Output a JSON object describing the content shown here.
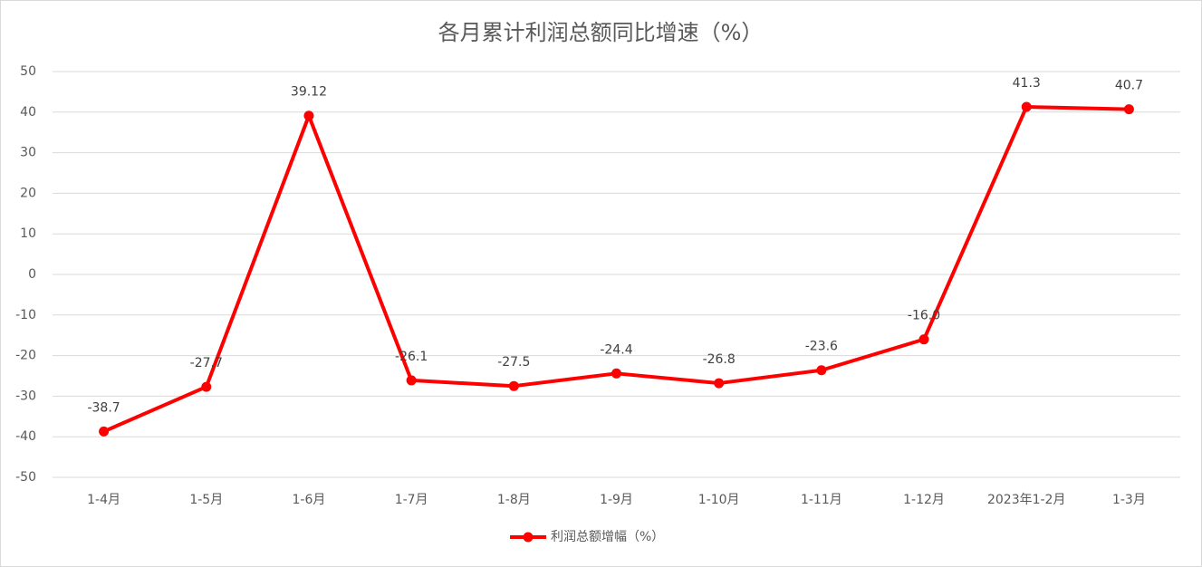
{
  "chart_data": {
    "type": "line",
    "title": "各月累计利润总额同比增速（%）",
    "categories": [
      "1-4月",
      "1-5月",
      "1-6月",
      "1-7月",
      "1-8月",
      "1-9月",
      "1-10月",
      "1-11月",
      "1-12月",
      "2023年1-2月",
      "1-3月"
    ],
    "series": [
      {
        "name": "利润总额增幅（%）",
        "color": "#ff0000",
        "values": [
          -38.7,
          -27.7,
          39.12,
          -26.1,
          -27.5,
          -24.4,
          -26.8,
          -23.6,
          -16.0,
          41.3,
          40.7
        ],
        "value_labels": [
          "-38.7",
          "-27.7",
          "39.12",
          "-26.1",
          "-27.5",
          "-24.4",
          "-26.8",
          "-23.6",
          "-16.0",
          "41.3",
          "40.7"
        ]
      }
    ],
    "ylim": [
      -50,
      50
    ],
    "yticks": [
      -50,
      -40,
      -30,
      -20,
      -10,
      0,
      10,
      20,
      30,
      40,
      50
    ],
    "grid": true,
    "legend": "bottom"
  }
}
